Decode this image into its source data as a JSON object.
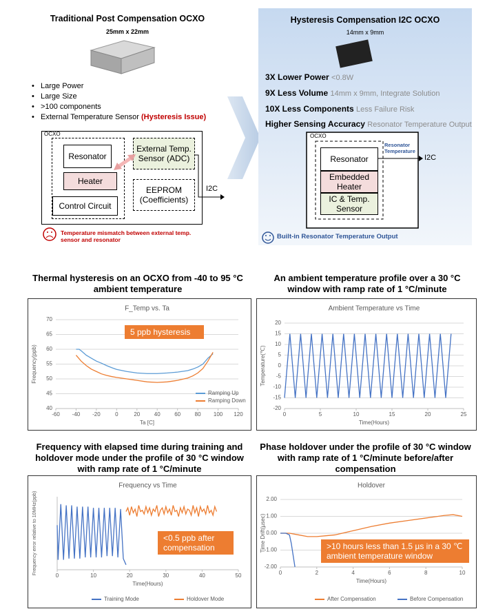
{
  "diagram": {
    "left": {
      "title": "Traditional Post Compensation OCXO",
      "size": "25mm x 22mm",
      "bullets": [
        "Large Power",
        "Large Size",
        ">100 components",
        "External Temperature Sensor"
      ],
      "bullet_note": "(Hysteresis Issue)",
      "ocxo_label": "OCXO",
      "resonator": "Resonator",
      "heater": "Heater",
      "control_circuit": "Control Circuit",
      "external_sensor": "External Temp. Sensor (ADC)",
      "eeprom": "EEPROM (Coefficients)",
      "i2c": "I2C",
      "warning": "Temperature mismatch between external temp. sensor and resonator"
    },
    "right": {
      "title": "Hysteresis Compensation I2C OCXO",
      "size": "14mm x 9mm",
      "features": [
        {
          "label": "3X Lower Power",
          "note": "<0.8W"
        },
        {
          "label": "9X Less Volume",
          "note": "14mm x 9mm, Integrate Solution"
        },
        {
          "label": "10X Less Components",
          "note": "Less Failure Risk"
        },
        {
          "label": "Higher Sensing Accuracy",
          "note": "Resonator Temperature Output"
        }
      ],
      "ocxo_label": "OCXO",
      "resonator": "Resonator",
      "heater": "Embedded Heater",
      "ic_sensor": "IC & Temp. Sensor",
      "resonator_temp": "Resonator Temperature",
      "i2c": "I2C",
      "output": "Built-in Resonator Temperature Output"
    }
  },
  "chart_data": [
    {
      "type": "line",
      "caption": "Thermal hysteresis  on an OCXO from -40 to 95 °C ambient temperature",
      "title": "F_Temp vs. Ta",
      "x_label": "Ta [C]",
      "y_label": "Frequency(ppb)",
      "annotation": "5 ppb hysteresis",
      "xlim": [
        -60,
        120
      ],
      "xticks": [
        -60,
        -40,
        -20,
        0,
        20,
        40,
        60,
        80,
        100,
        120
      ],
      "ylim": [
        40,
        70
      ],
      "yticks": [
        40,
        45,
        50,
        55,
        60,
        65,
        70
      ],
      "grid": true,
      "legend": "lower right",
      "series": [
        {
          "name": "Ramping Up",
          "color": "#5b9bd5",
          "x": [
            -40,
            -37,
            -35,
            -30,
            -25,
            -20,
            -15,
            -10,
            -5,
            0,
            10,
            20,
            30,
            40,
            50,
            60,
            70,
            75,
            80,
            85,
            90,
            95
          ],
          "values": [
            60,
            60,
            59.5,
            58,
            57,
            56,
            55.3,
            54.5,
            53.8,
            53.2,
            52.5,
            52,
            51.8,
            51.8,
            52,
            52.3,
            52.8,
            53.3,
            54,
            55,
            57,
            58.5
          ]
        },
        {
          "name": "Ramping Down",
          "color": "#ed7d31",
          "x": [
            -40,
            -35,
            -30,
            -25,
            -20,
            -15,
            -10,
            -5,
            0,
            10,
            20,
            30,
            40,
            50,
            60,
            70,
            75,
            80,
            85,
            90,
            95
          ],
          "values": [
            58,
            56,
            54.5,
            53.3,
            52.5,
            51.7,
            51.2,
            50.8,
            50.5,
            50,
            49.5,
            49,
            48.8,
            49,
            49.5,
            50.3,
            51,
            52,
            53.5,
            56,
            59
          ]
        }
      ]
    },
    {
      "type": "line",
      "caption": "An ambient temperature profile over a 30 °C window with ramp rate of 1 °C/minute",
      "title": "Ambient Temperature vs Time",
      "x_label": "Time(Hours)",
      "y_label": "Temperature(℃)",
      "xlim": [
        0,
        25
      ],
      "xticks": [
        0,
        5,
        10,
        15,
        20,
        25
      ],
      "ylim": [
        -20,
        20
      ],
      "yticks": [
        -20,
        -15,
        -10,
        -5,
        0,
        5,
        10,
        15,
        20
      ],
      "grid": true,
      "series": [
        {
          "color": "#4472c4",
          "x": [
            0,
            0.75,
            1.5,
            2.25,
            3,
            3.75,
            4.5,
            5.25,
            6,
            6.75,
            7.5,
            8.25,
            9,
            9.75,
            10.5,
            11.25,
            12,
            12.75,
            13.5,
            14.25,
            15,
            15.75,
            16.5,
            17.25,
            18,
            18.75,
            19.5,
            20.25,
            21,
            21.75,
            22.5,
            23.25
          ],
          "values": [
            -15,
            15,
            -15,
            15,
            -15,
            15,
            -15,
            15,
            -15,
            15,
            -15,
            15,
            -15,
            15,
            -15,
            15,
            -15,
            15,
            -15,
            15,
            -15,
            15,
            -15,
            15,
            -15,
            15,
            -15,
            15,
            -15,
            15,
            -15,
            15
          ]
        }
      ]
    },
    {
      "type": "line",
      "caption": "Frequency with elapsed time during training and holdover mode under the profile of 30 °C window with ramp rate of 1 °C/minute",
      "title": "Frequency vs Time",
      "x_label": "Time(Hours)",
      "y_label": "Frequency error relative to 10MHz(ppb)",
      "annotation": "<0.5 ppb after compensation",
      "xlim": [
        0,
        50
      ],
      "xticks": [
        0,
        10,
        20,
        30,
        40,
        50
      ],
      "ylim": [
        -4.6,
        1.3
      ],
      "grid": false,
      "legend": "bottom",
      "series": [
        {
          "name": "Training Mode",
          "color": "#4472c4",
          "x": [
            0,
            0.25,
            1,
            1.75,
            2.5,
            3.25,
            4,
            4.75,
            5.5,
            6.25,
            7,
            7.75,
            8.5,
            9.25,
            10,
            10.75,
            11.5,
            12.25,
            13,
            13.75,
            14.5,
            15.25,
            16,
            16.75,
            17.5,
            18.25,
            19
          ],
          "values": [
            -1,
            -3.8,
            0.7,
            -3.8,
            0.6,
            -3.7,
            0.6,
            -3.7,
            0.5,
            -3.7,
            0.5,
            -3.6,
            0.5,
            -3.6,
            0.4,
            -3.6,
            0.4,
            -3.6,
            0.4,
            -3.5,
            0.4,
            -3.5,
            0.4,
            -3.6,
            0.3,
            -3.7,
            -4.2
          ]
        },
        {
          "name": "Holdover Mode",
          "color": "#ed7d31",
          "x": [
            19,
            19.5,
            20,
            20.5,
            21,
            21.5,
            22,
            22.5,
            23,
            23.5,
            24,
            24.5,
            25,
            25.5,
            26,
            26.5,
            27,
            27.5,
            28,
            28.5,
            29,
            29.5,
            30,
            30.5,
            31,
            31.5,
            32,
            32.5,
            33,
            33.5,
            34,
            34.5,
            35,
            35.5,
            36,
            36.5,
            37,
            37.5,
            38,
            38.5,
            39,
            39.5,
            40,
            40.5,
            41,
            41.5,
            42,
            42.5,
            43,
            43.5,
            44
          ],
          "values": [
            0.1,
            0.4,
            -0.2,
            0.5,
            0.0,
            0.3,
            -0.3,
            0.6,
            0.1,
            0.2,
            -0.1,
            0.5,
            0.0,
            0.4,
            -0.2,
            0.3,
            0.1,
            0.6,
            -0.3,
            0.2,
            0.4,
            -0.1,
            0.5,
            0.0,
            0.3,
            -0.2,
            0.6,
            0.1,
            0.2,
            -0.3,
            0.4,
            0.0,
            0.5,
            -0.1,
            0.3,
            0.2,
            -0.2,
            0.6,
            0.0,
            0.4,
            -0.3,
            0.5,
            0.1,
            0.3,
            -0.1,
            0.6,
            0.0,
            0.2,
            -0.2,
            0.5,
            0.1
          ]
        }
      ]
    },
    {
      "type": "line",
      "caption": "Phase holdover under the profile of 30 °C window with ramp rate of 1 °C/minute before/after compensation",
      "title": "Holdover",
      "x_label": "Time(Hours)",
      "y_label": "Time Drift(µsec)",
      "annotation": ">10 hours less than 1.5 µs in a 30 ℃ ambient temperature window",
      "xlim": [
        0,
        10
      ],
      "xticks": [
        0,
        2,
        4,
        6,
        8,
        10
      ],
      "ylim": [
        -2,
        2
      ],
      "yticks": [
        {
          "value": -2,
          "label": "-2.00"
        },
        {
          "value": -1,
          "label": "-1.00"
        },
        {
          "value": 0,
          "label": "0.00"
        },
        {
          "value": 1,
          "label": "1.00"
        },
        {
          "value": 2,
          "label": "2.00"
        }
      ],
      "grid": true,
      "legend": "bottom",
      "series": [
        {
          "name": "After Compensation",
          "color": "#ed7d31",
          "x": [
            0,
            0.5,
            1,
            1.5,
            2,
            2.5,
            3,
            4,
            5,
            6,
            7,
            8,
            9,
            9.5,
            10
          ],
          "values": [
            0,
            0,
            -0.1,
            -0.2,
            -0.2,
            -0.15,
            -0.1,
            0.15,
            0.4,
            0.6,
            0.75,
            0.9,
            1.05,
            1.1,
            1.0
          ]
        },
        {
          "name": "Before Compensation",
          "color": "#4472c4",
          "x": [
            0,
            0.3,
            0.5,
            0.6,
            0.7,
            0.8
          ],
          "values": [
            0,
            0,
            -0.1,
            -0.6,
            -1.3,
            -2
          ]
        }
      ]
    }
  ]
}
